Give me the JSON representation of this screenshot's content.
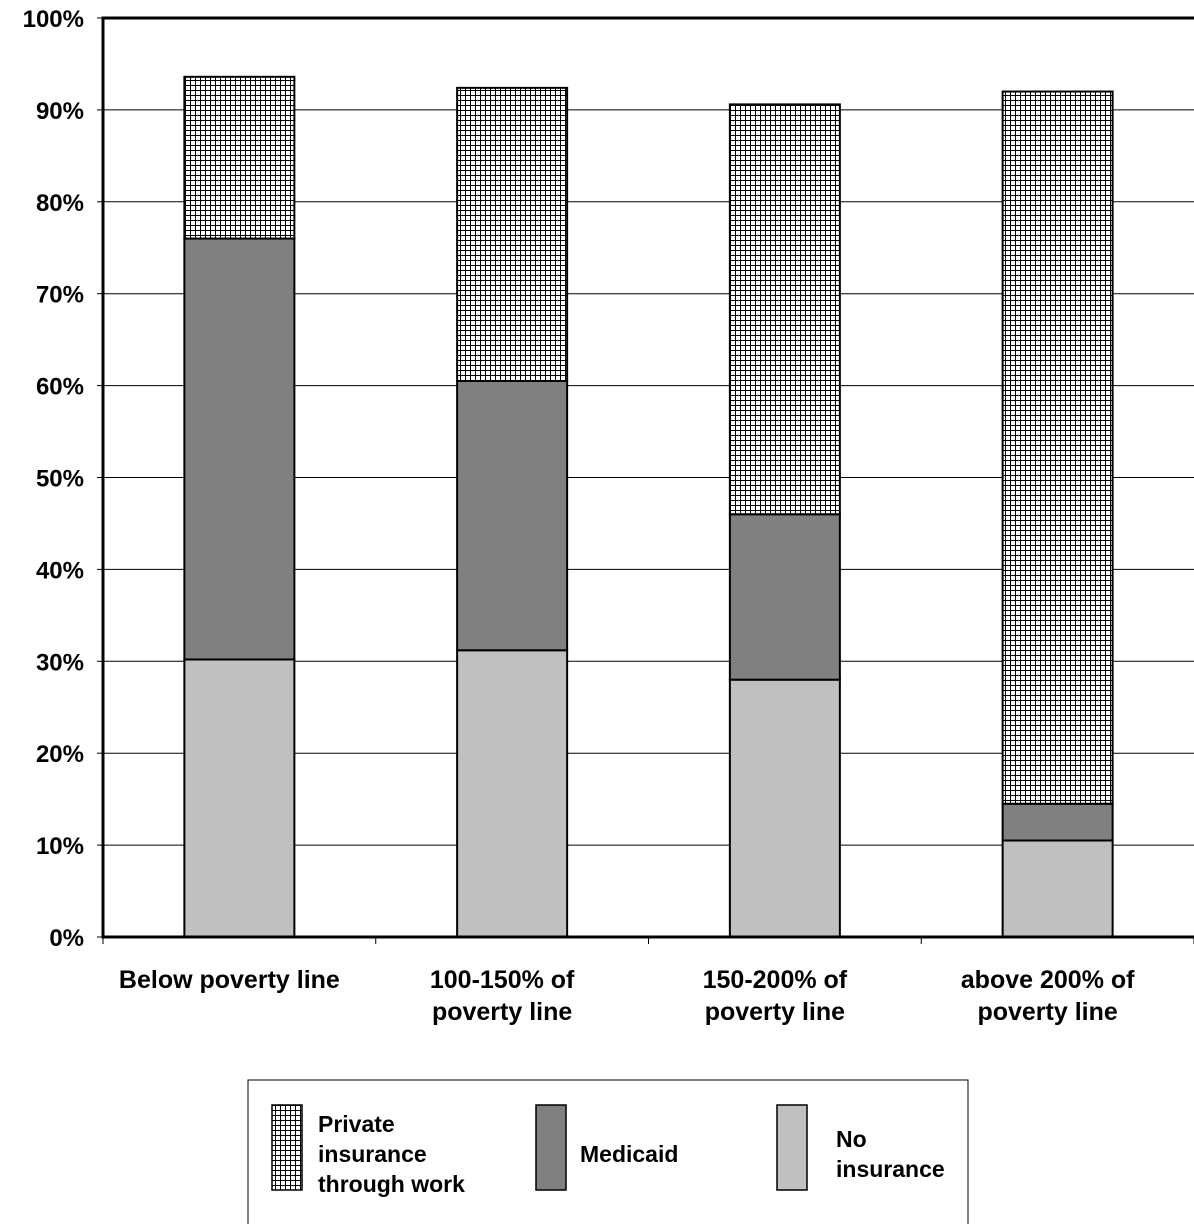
{
  "chart_data": {
    "type": "bar",
    "stacked": true,
    "categories": [
      [
        "Below poverty line"
      ],
      [
        "100-150% of",
        "poverty line"
      ],
      [
        "150-200% of",
        "poverty line"
      ],
      [
        "above 200% of",
        "poverty line"
      ]
    ],
    "series": [
      {
        "name": [
          "No",
          "insurance"
        ],
        "values": [
          30.2,
          31.2,
          28.0,
          10.5
        ],
        "fill": "#c0c0c0",
        "pattern": "solid"
      },
      {
        "name": [
          "Medicaid"
        ],
        "values": [
          45.8,
          29.3,
          18.0,
          4.0
        ],
        "fill": "#808080",
        "pattern": "solid"
      },
      {
        "name": [
          "Private",
          "insurance",
          "through work"
        ],
        "values": [
          17.6,
          31.9,
          44.6,
          77.5
        ],
        "fill": "#ffffff",
        "pattern": "grid"
      }
    ],
    "ylim": [
      0,
      100
    ],
    "yticks": [
      "0%",
      "10%",
      "20%",
      "30%",
      "40%",
      "50%",
      "60%",
      "70%",
      "80%",
      "90%",
      "100%"
    ],
    "grid": true,
    "legend": "bottom",
    "legend_order": [
      2,
      1,
      0
    ]
  }
}
